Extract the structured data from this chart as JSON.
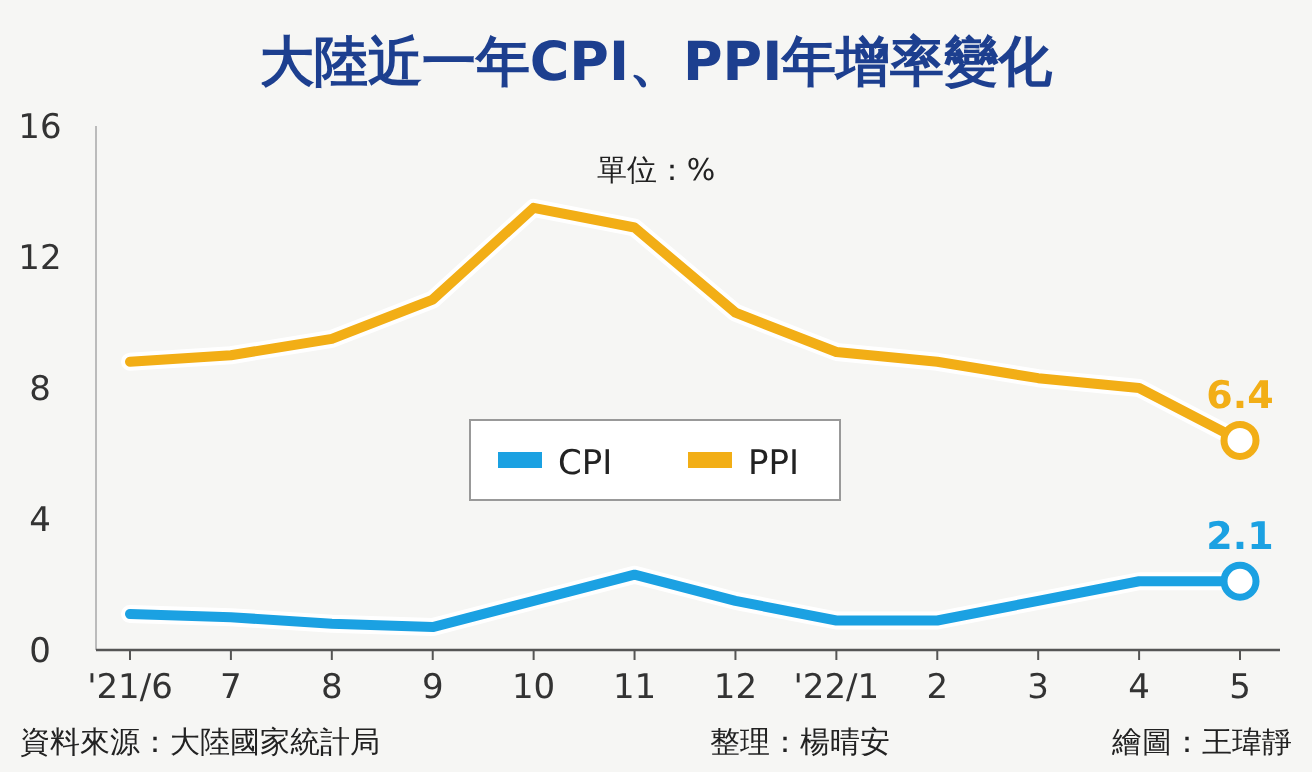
{
  "chart_data": {
    "type": "line",
    "title": "大陸近一年CPI、PPI年增率變化",
    "categories": [
      "'21/6",
      "7",
      "8",
      "9",
      "10",
      "11",
      "12",
      "'22/1",
      "2",
      "3",
      "4",
      "5"
    ],
    "series": [
      {
        "name": "CPI",
        "color": "#1ba1e2",
        "values": [
          1.1,
          1.0,
          0.8,
          0.7,
          1.5,
          2.3,
          1.5,
          0.9,
          0.9,
          1.5,
          2.1,
          2.1
        ],
        "value_labels": [
          null,
          null,
          null,
          null,
          null,
          null,
          null,
          null,
          null,
          null,
          null,
          "2.1"
        ]
      },
      {
        "name": "PPI",
        "color": "#f2ae16",
        "values": [
          8.8,
          9.0,
          9.5,
          10.7,
          13.5,
          12.9,
          10.3,
          9.1,
          8.8,
          8.3,
          8.0,
          6.4
        ],
        "value_labels": [
          null,
          null,
          null,
          null,
          null,
          null,
          null,
          null,
          null,
          null,
          null,
          "6.4"
        ]
      }
    ],
    "ylim": [
      0,
      16
    ],
    "yticks": [
      0,
      4,
      8,
      12,
      16
    ],
    "grid": false,
    "legend": "center",
    "marker": "none",
    "line_style": "solid",
    "annotations": [
      "單位：%",
      "資料來源：大陸國家統計局",
      "整理：楊晴安",
      "繪圖：王瑋靜"
    ]
  }
}
